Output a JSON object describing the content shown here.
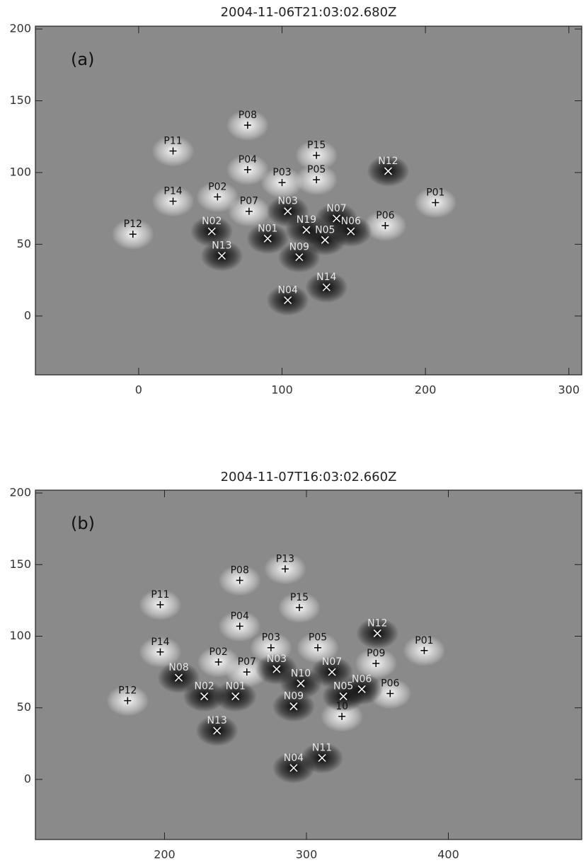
{
  "chart_data": [
    {
      "type": "scatter",
      "title": "2004-11-06T21:03:02.680Z",
      "panel_label": "(a)",
      "xlim": [
        -72,
        309
      ],
      "ylim": [
        -41,
        202
      ],
      "xticks": [
        0,
        100,
        200,
        300
      ],
      "yticks": [
        0,
        50,
        100,
        150,
        200
      ],
      "positive": {
        "color": "#000000",
        "labels": [
          "P01",
          "P02",
          "P03",
          "P04",
          "P05",
          "P06",
          "P07",
          "P08",
          "P11",
          "P12",
          "P14",
          "P15"
        ],
        "x": [
          207,
          55,
          100,
          76,
          124,
          172,
          77,
          76,
          24,
          -4,
          24,
          124
        ],
        "y": [
          79,
          83,
          93,
          102,
          95,
          63,
          73,
          133,
          115,
          57,
          80,
          112
        ]
      },
      "negative": {
        "color": "#ffffff",
        "labels": [
          "N01",
          "N02",
          "N03",
          "N04",
          "N05",
          "N06",
          "N07",
          "N09",
          "N12",
          "N13",
          "N14",
          "N19"
        ],
        "x": [
          90,
          51,
          104,
          104,
          130,
          148,
          138,
          112,
          174,
          58,
          131,
          117
        ],
        "y": [
          54,
          59,
          73,
          11,
          53,
          59,
          68,
          41,
          101,
          42,
          20,
          60
        ]
      }
    },
    {
      "type": "scatter",
      "title": "2004-11-07T16:03:02.660Z",
      "panel_label": "(b)",
      "xlim": [
        109,
        494
      ],
      "ylim": [
        -42,
        202
      ],
      "xticks": [
        200,
        300,
        400
      ],
      "yticks": [
        0,
        50,
        100,
        150,
        200
      ],
      "positive": {
        "color": "#000000",
        "labels": [
          "P01",
          "P02",
          "P03",
          "P04",
          "P05",
          "P06",
          "P07",
          "P08",
          "P09",
          "10",
          "P11",
          "P12",
          "P13",
          "P14",
          "P15"
        ],
        "x": [
          383,
          238,
          275,
          253,
          308,
          359,
          258,
          253,
          349,
          325,
          197,
          174,
          285,
          197,
          295
        ],
        "y": [
          90,
          82,
          92,
          107,
          92,
          60,
          75,
          139,
          81,
          44,
          122,
          55,
          147,
          89,
          120
        ]
      },
      "negative": {
        "color": "#ffffff",
        "labels": [
          "N01",
          "N02",
          "N03",
          "N04",
          "N05",
          "N06",
          "N07",
          "N08",
          "N09",
          "N10",
          "N11",
          "N12",
          "N13"
        ],
        "x": [
          250,
          228,
          279,
          291,
          326,
          339,
          318,
          210,
          291,
          296,
          311,
          350,
          237
        ],
        "y": [
          58,
          58,
          77,
          8,
          58,
          63,
          75,
          71,
          51,
          67,
          15,
          102,
          34
        ]
      }
    }
  ]
}
